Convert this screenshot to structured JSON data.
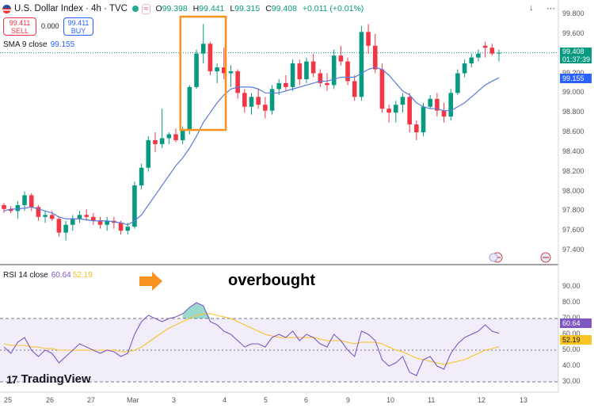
{
  "header": {
    "symbol": "U.S. Dollar Index · 4h · TVC",
    "ohlc": [
      {
        "k": "O",
        "v": "99.398"
      },
      {
        "k": "H",
        "v": "99.441"
      },
      {
        "k": "L",
        "v": "99.315"
      },
      {
        "k": "C",
        "v": "99.408"
      }
    ],
    "change": "+0.011 (+0.01%)",
    "up_color": "#089981",
    "down_color": "#f23645"
  },
  "trade": {
    "sell_price": "99.411",
    "sell_label": "SELL",
    "buy_price": "99.411",
    "buy_label": "BUY",
    "spread": "0.000"
  },
  "indicators": {
    "sma_label": "SMA 9 close",
    "sma_value": "99.155",
    "rsi_label": "RSI 14 close",
    "rsi_value": "60.64",
    "rsi_ma_value": "52.19"
  },
  "price_tag": {
    "price": "99.408",
    "countdown": "01:37:39"
  },
  "annotation": "overbought",
  "brand": "TradingView",
  "chart_data": {
    "type": "candlestick",
    "price_axis": [
      "99.800",
      "99.600",
      "99.400",
      "99.200",
      "99.000",
      "98.800",
      "98.600",
      "98.400",
      "98.200",
      "98.000",
      "97.800",
      "97.600",
      "97.400"
    ],
    "rsi_axis": [
      "90.00",
      "80.00",
      "70.00",
      "60.00",
      "50.00",
      "40.00",
      "30.00"
    ],
    "x_labels": [
      "25",
      "26",
      "27",
      "Mar",
      "3",
      "4",
      "5",
      "6",
      "9",
      "10",
      "11",
      "12",
      "13"
    ],
    "candles": [
      [
        97.86,
        97.88,
        97.78,
        97.82
      ],
      [
        97.82,
        97.85,
        97.78,
        97.8
      ],
      [
        97.8,
        97.9,
        97.72,
        97.86
      ],
      [
        97.86,
        98.0,
        97.8,
        97.96
      ],
      [
        97.96,
        97.98,
        97.8,
        97.84
      ],
      [
        97.84,
        97.86,
        97.7,
        97.74
      ],
      [
        97.74,
        97.8,
        97.68,
        97.76
      ],
      [
        97.76,
        97.8,
        97.7,
        97.72
      ],
      [
        97.72,
        97.74,
        97.54,
        97.58
      ],
      [
        97.58,
        97.7,
        97.5,
        97.66
      ],
      [
        97.66,
        97.76,
        97.6,
        97.72
      ],
      [
        97.72,
        97.8,
        97.68,
        97.76
      ],
      [
        97.76,
        97.82,
        97.7,
        97.74
      ],
      [
        97.74,
        97.78,
        97.66,
        97.7
      ],
      [
        97.7,
        97.74,
        97.62,
        97.66
      ],
      [
        97.66,
        97.74,
        97.6,
        97.7
      ],
      [
        97.7,
        97.74,
        97.62,
        97.68
      ],
      [
        97.68,
        97.7,
        97.56,
        97.6
      ],
      [
        97.6,
        97.68,
        97.56,
        97.64
      ],
      [
        97.64,
        98.1,
        97.62,
        98.06
      ],
      [
        98.06,
        98.28,
        98.02,
        98.24
      ],
      [
        98.24,
        98.56,
        98.2,
        98.52
      ],
      [
        98.52,
        98.6,
        98.4,
        98.48
      ],
      [
        98.48,
        98.84,
        98.44,
        98.54
      ],
      [
        98.54,
        98.6,
        98.48,
        98.58
      ],
      [
        98.58,
        98.64,
        98.5,
        98.52
      ],
      [
        98.52,
        98.66,
        98.48,
        98.62
      ],
      [
        98.62,
        99.08,
        98.58,
        99.06
      ],
      [
        99.06,
        99.44,
        99.04,
        99.4
      ],
      [
        99.4,
        99.7,
        99.3,
        99.5
      ],
      [
        99.5,
        99.52,
        99.18,
        99.22
      ],
      [
        99.22,
        99.3,
        99.1,
        99.26
      ],
      [
        99.26,
        99.46,
        99.14,
        99.2
      ],
      [
        99.2,
        99.28,
        99.06,
        99.22
      ],
      [
        99.22,
        99.24,
        98.94,
        99.0
      ],
      [
        99.0,
        99.04,
        98.8,
        98.86
      ],
      [
        98.86,
        99.0,
        98.78,
        98.96
      ],
      [
        98.96,
        99.04,
        98.84,
        98.88
      ],
      [
        98.88,
        98.96,
        98.74,
        98.82
      ],
      [
        98.82,
        99.08,
        98.78,
        99.04
      ],
      [
        99.04,
        99.14,
        98.98,
        99.1
      ],
      [
        99.1,
        99.18,
        99.02,
        99.06
      ],
      [
        99.06,
        99.34,
        99.02,
        99.3
      ],
      [
        99.3,
        99.34,
        99.08,
        99.14
      ],
      [
        99.14,
        99.36,
        99.1,
        99.32
      ],
      [
        99.32,
        99.4,
        99.16,
        99.2
      ],
      [
        99.2,
        99.24,
        99.06,
        99.1
      ],
      [
        99.1,
        99.2,
        99.02,
        99.08
      ],
      [
        99.08,
        99.44,
        99.04,
        99.38
      ],
      [
        99.38,
        99.48,
        99.28,
        99.32
      ],
      [
        99.32,
        99.36,
        99.08,
        99.12
      ],
      [
        99.12,
        99.18,
        98.92,
        98.96
      ],
      [
        98.96,
        99.68,
        98.92,
        99.62
      ],
      [
        99.62,
        99.7,
        99.4,
        99.48
      ],
      [
        99.48,
        99.6,
        99.2,
        99.24
      ],
      [
        99.24,
        99.3,
        98.8,
        98.84
      ],
      [
        98.84,
        98.88,
        98.7,
        98.8
      ],
      [
        98.8,
        98.92,
        98.7,
        98.88
      ],
      [
        98.88,
        99.0,
        98.8,
        98.96
      ],
      [
        98.96,
        99.0,
        98.6,
        98.68
      ],
      [
        98.68,
        98.72,
        98.52,
        98.6
      ],
      [
        98.6,
        98.9,
        98.56,
        98.86
      ],
      [
        98.86,
        98.98,
        98.84,
        98.94
      ],
      [
        98.94,
        99.0,
        98.76,
        98.82
      ],
      [
        98.82,
        98.9,
        98.7,
        98.76
      ],
      [
        98.76,
        99.04,
        98.72,
        99.0
      ],
      [
        99.0,
        99.24,
        98.98,
        99.2
      ],
      [
        99.2,
        99.34,
        99.16,
        99.3
      ],
      [
        99.3,
        99.4,
        99.26,
        99.36
      ],
      [
        99.36,
        99.44,
        99.32,
        99.4
      ],
      [
        99.48,
        99.52,
        99.36,
        99.46
      ],
      [
        99.46,
        99.5,
        99.38,
        99.4
      ],
      [
        99.4,
        99.44,
        99.32,
        99.408
      ]
    ],
    "sma": [
      97.8,
      97.82,
      97.82,
      97.83,
      97.84,
      97.82,
      97.8,
      97.78,
      97.74,
      97.72,
      97.72,
      97.72,
      97.71,
      97.7,
      97.7,
      97.7,
      97.69,
      97.68,
      97.66,
      97.7,
      97.76,
      97.86,
      97.96,
      98.06,
      98.16,
      98.26,
      98.34,
      98.44,
      98.56,
      98.7,
      98.8,
      98.9,
      98.98,
      99.04,
      99.06,
      99.06,
      99.06,
      99.04,
      99.0,
      99.0,
      99.0,
      99.02,
      99.04,
      99.06,
      99.08,
      99.1,
      99.12,
      99.12,
      99.14,
      99.16,
      99.16,
      99.16,
      99.2,
      99.24,
      99.26,
      99.24,
      99.18,
      99.1,
      99.02,
      98.98,
      98.9,
      98.86,
      98.84,
      98.84,
      98.82,
      98.82,
      98.86,
      98.9,
      98.96,
      99.02,
      99.08,
      99.12,
      99.155
    ],
    "rsi": [
      52,
      48,
      55,
      58,
      50,
      46,
      50,
      48,
      42,
      46,
      50,
      54,
      52,
      50,
      48,
      50,
      49,
      46,
      48,
      60,
      68,
      72,
      70,
      68,
      70,
      71,
      73,
      77,
      80,
      78,
      68,
      66,
      62,
      60,
      56,
      52,
      54,
      54,
      52,
      58,
      60,
      58,
      62,
      56,
      60,
      58,
      54,
      52,
      60,
      56,
      50,
      46,
      62,
      60,
      56,
      44,
      40,
      42,
      46,
      36,
      34,
      44,
      46,
      40,
      38,
      48,
      54,
      58,
      60,
      62,
      66,
      62,
      60.64
    ],
    "rsi_ma": [
      54,
      53,
      53,
      53,
      52,
      52,
      51,
      51,
      50,
      50,
      50,
      50,
      50,
      50,
      50,
      50,
      50,
      49,
      49,
      50,
      52,
      55,
      58,
      61,
      64,
      66,
      68,
      70,
      72,
      73,
      73,
      72,
      71,
      70,
      68,
      66,
      64,
      62,
      60,
      59,
      58,
      58,
      58,
      58,
      58,
      58,
      57,
      56,
      56,
      56,
      55,
      54,
      55,
      55,
      55,
      54,
      52,
      50,
      49,
      47,
      45,
      44,
      43,
      42,
      41,
      42,
      43,
      44,
      46,
      48,
      50,
      51,
      52.19
    ]
  }
}
